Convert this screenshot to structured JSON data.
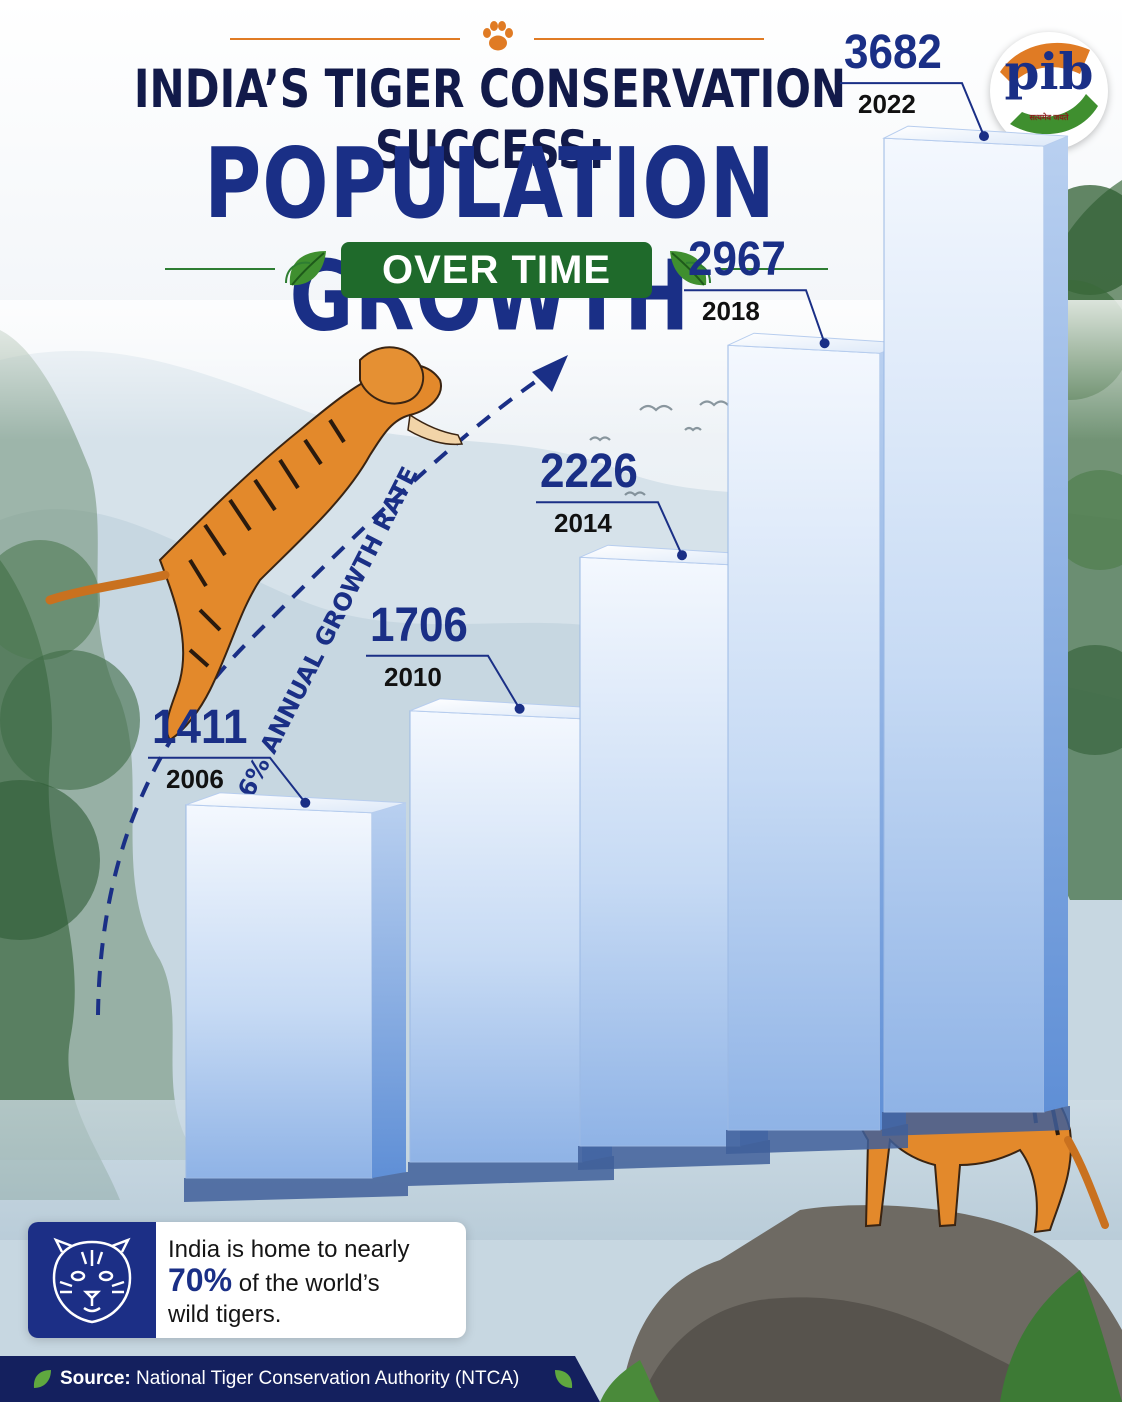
{
  "header": {
    "title_line1": "INDIA’S TIGER CONSERVATION SUCCESS:",
    "title_line2": "POPULATION GROWTH",
    "badge": "OVER TIME"
  },
  "logo": {
    "text": "pib",
    "subtext": "सत्यमेव जयते"
  },
  "annotation": {
    "growth_rate": "6% ANNUAL GROWTH RATE"
  },
  "chart_data": {
    "type": "bar",
    "categories": [
      "2006",
      "2010",
      "2014",
      "2018",
      "2022"
    ],
    "values": [
      1411,
      1706,
      2226,
      2967,
      3682
    ],
    "title": "INDIA’S TIGER CONSERVATION SUCCESS: POPULATION GROWTH OVER TIME",
    "xlabel": "",
    "ylabel": "",
    "grid": false,
    "data_labels": true
  },
  "info_card": {
    "line1": "India is home to nearly",
    "highlight": "70%",
    "line2_rest": " of the world’s",
    "line3": "wild tigers.",
    "icon": "tiger-face-icon"
  },
  "source": {
    "label": "Source:",
    "text": " National Tiger Conservation Authority (NTCA)",
    "icon": "leaf-icon"
  },
  "colors": {
    "title_dark": "#121a4a",
    "title_blue": "#1a2f86",
    "badge_green": "#1f6a2b",
    "accent_orange": "#e07b24",
    "bar_light": "#e8f0fb",
    "bar_mid": "#a8c6ee",
    "bar_dark": "#5f8fd6",
    "source_bg": "#14205e"
  }
}
